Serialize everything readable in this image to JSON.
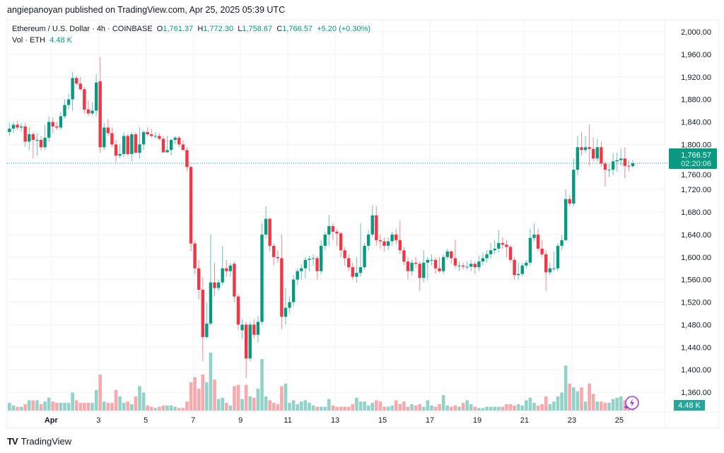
{
  "header": {
    "published": "angiepanoyan published on TradingView.com, Apr 25, 2025 05:39 UTC"
  },
  "legend": {
    "symbol": "Ethereum / U.S. Dollar · 4h · COINBASE",
    "o_label": "O",
    "o": "1,761.37",
    "h_label": "H",
    "h": "1,772.30",
    "l_label": "L",
    "l": "1,758.67",
    "c_label": "C",
    "c": "1,766.57",
    "change": "+5.20 (+0.30%)",
    "vol_label": "Vol · ETH",
    "vol": "4.48 K"
  },
  "price_tag": {
    "price": "1,766.57",
    "countdown": "02:20:06"
  },
  "volume_tag": "4.48 K",
  "footer": {
    "brand": "TradingView"
  },
  "colors": {
    "up": "#089981",
    "down": "#F23645",
    "up_vol": "#92d2c7",
    "down_vol": "#f7a9ad",
    "grid": "#f0f3fa"
  },
  "chart_data": {
    "type": "candlestick",
    "title": "Ethereum / U.S. Dollar · 4h · COINBASE",
    "ylim": [
      1340,
      2020
    ],
    "y_ticks": [
      "2,000.00",
      "1,960.00",
      "1,920.00",
      "1,880.00",
      "1,840.00",
      "1,800.00",
      "1,760.00",
      "1,720.00",
      "1,680.00",
      "1,640.00",
      "1,600.00",
      "1,560.00",
      "1,520.00",
      "1,480.00",
      "1,440.00",
      "1,400.00",
      "1,360.00"
    ],
    "y_tick_values": [
      2000,
      1960,
      1920,
      1880,
      1840,
      1800,
      1760,
      1720,
      1680,
      1640,
      1600,
      1560,
      1520,
      1480,
      1440,
      1400,
      1360
    ],
    "x_ticks": [
      "Apr",
      "3",
      "5",
      "7",
      "9",
      "11",
      "13",
      "15",
      "17",
      "19",
      "21",
      "23",
      "25"
    ],
    "x_tick_candle_index": [
      12,
      24,
      36,
      48,
      60,
      72,
      84,
      96,
      108,
      120,
      132,
      144,
      156
    ],
    "last_price": 1766.57,
    "candles_ohlcv_k": [
      [
        1822,
        1838,
        1815,
        1828,
        6
      ],
      [
        1828,
        1840,
        1820,
        1835,
        4
      ],
      [
        1835,
        1842,
        1826,
        1830,
        3
      ],
      [
        1830,
        1838,
        1822,
        1832,
        3
      ],
      [
        1832,
        1838,
        1796,
        1805,
        5
      ],
      [
        1805,
        1830,
        1790,
        1818,
        8
      ],
      [
        1818,
        1822,
        1775,
        1808,
        8
      ],
      [
        1808,
        1820,
        1780,
        1808,
        8
      ],
      [
        1808,
        1815,
        1790,
        1795,
        5
      ],
      [
        1795,
        1835,
        1790,
        1812,
        7
      ],
      [
        1812,
        1850,
        1805,
        1840,
        10
      ],
      [
        1840,
        1848,
        1820,
        1832,
        7
      ],
      [
        1832,
        1840,
        1826,
        1830,
        6
      ],
      [
        1830,
        1858,
        1826,
        1850,
        6
      ],
      [
        1850,
        1880,
        1846,
        1870,
        6
      ],
      [
        1870,
        1890,
        1862,
        1880,
        6
      ],
      [
        1880,
        1928,
        1860,
        1918,
        14
      ],
      [
        1918,
        1922,
        1905,
        1908,
        8
      ],
      [
        1908,
        1920,
        1895,
        1898,
        6
      ],
      [
        1898,
        1902,
        1855,
        1862,
        6
      ],
      [
        1862,
        1878,
        1850,
        1855,
        6
      ],
      [
        1855,
        1875,
        1852,
        1860,
        6
      ],
      [
        1860,
        1925,
        1850,
        1910,
        16
      ],
      [
        1912,
        1955,
        1785,
        1795,
        28
      ],
      [
        1795,
        1838,
        1790,
        1830,
        7
      ],
      [
        1830,
        1845,
        1815,
        1820,
        6
      ],
      [
        1820,
        1830,
        1795,
        1800,
        6
      ],
      [
        1800,
        1808,
        1768,
        1780,
        16
      ],
      [
        1780,
        1800,
        1775,
        1783,
        11
      ],
      [
        1783,
        1822,
        1778,
        1815,
        6
      ],
      [
        1815,
        1818,
        1780,
        1783,
        7
      ],
      [
        1783,
        1822,
        1770,
        1818,
        5
      ],
      [
        1818,
        1822,
        1785,
        1785,
        11
      ],
      [
        1785,
        1830,
        1775,
        1800,
        19
      ],
      [
        1800,
        1825,
        1790,
        1822,
        14
      ],
      [
        1822,
        1830,
        1815,
        1818,
        4
      ],
      [
        1818,
        1828,
        1812,
        1815,
        3
      ],
      [
        1815,
        1822,
        1810,
        1815,
        2
      ],
      [
        1815,
        1820,
        1808,
        1810,
        3
      ],
      [
        1810,
        1815,
        1785,
        1786,
        4
      ],
      [
        1786,
        1815,
        1785,
        1790,
        4
      ],
      [
        1790,
        1810,
        1780,
        1808,
        4
      ],
      [
        1808,
        1815,
        1800,
        1812,
        3
      ],
      [
        1812,
        1815,
        1795,
        1800,
        2
      ],
      [
        1800,
        1808,
        1790,
        1790,
        2
      ],
      [
        1790,
        1795,
        1752,
        1760,
        7
      ],
      [
        1760,
        1762,
        1610,
        1624,
        22
      ],
      [
        1624,
        1630,
        1570,
        1580,
        26
      ],
      [
        1580,
        1595,
        1525,
        1542,
        17
      ],
      [
        1542,
        1565,
        1415,
        1458,
        28
      ],
      [
        1458,
        1520,
        1455,
        1482,
        22
      ],
      [
        1482,
        1640,
        1478,
        1555,
        45
      ],
      [
        1555,
        1590,
        1530,
        1545,
        24
      ],
      [
        1545,
        1560,
        1540,
        1555,
        9
      ],
      [
        1555,
        1620,
        1550,
        1580,
        10
      ],
      [
        1580,
        1595,
        1565,
        1575,
        6
      ],
      [
        1575,
        1590,
        1565,
        1585,
        4
      ],
      [
        1588,
        1592,
        1520,
        1530,
        19
      ],
      [
        1530,
        1535,
        1470,
        1480,
        20
      ],
      [
        1470,
        1490,
        1455,
        1480,
        9
      ],
      [
        1480,
        1485,
        1385,
        1420,
        20
      ],
      [
        1420,
        1485,
        1415,
        1480,
        11
      ],
      [
        1480,
        1490,
        1455,
        1462,
        10
      ],
      [
        1462,
        1495,
        1448,
        1485,
        17
      ],
      [
        1485,
        1660,
        1480,
        1640,
        40
      ],
      [
        1640,
        1690,
        1632,
        1668,
        11
      ],
      [
        1668,
        1670,
        1610,
        1620,
        8
      ],
      [
        1620,
        1625,
        1585,
        1600,
        6
      ],
      [
        1600,
        1612,
        1590,
        1598,
        5
      ],
      [
        1598,
        1640,
        1472,
        1494,
        19
      ],
      [
        1494,
        1545,
        1480,
        1510,
        21
      ],
      [
        1510,
        1530,
        1500,
        1520,
        6
      ],
      [
        1520,
        1568,
        1512,
        1560,
        8
      ],
      [
        1560,
        1580,
        1550,
        1575,
        5
      ],
      [
        1575,
        1588,
        1560,
        1580,
        7
      ],
      [
        1580,
        1600,
        1562,
        1595,
        8
      ],
      [
        1595,
        1602,
        1575,
        1597,
        6
      ],
      [
        1597,
        1605,
        1585,
        1598,
        4
      ],
      [
        1598,
        1602,
        1560,
        1575,
        3
      ],
      [
        1575,
        1630,
        1570,
        1620,
        3
      ],
      [
        1620,
        1645,
        1612,
        1640,
        3
      ],
      [
        1640,
        1675,
        1620,
        1655,
        9
      ],
      [
        1655,
        1660,
        1630,
        1645,
        4
      ],
      [
        1645,
        1650,
        1620,
        1642,
        3
      ],
      [
        1642,
        1645,
        1600,
        1612,
        3
      ],
      [
        1612,
        1618,
        1585,
        1598,
        3
      ],
      [
        1598,
        1605,
        1575,
        1582,
        3
      ],
      [
        1582,
        1590,
        1560,
        1565,
        5
      ],
      [
        1565,
        1600,
        1555,
        1572,
        10
      ],
      [
        1572,
        1660,
        1565,
        1582,
        7
      ],
      [
        1582,
        1625,
        1578,
        1620,
        7
      ],
      [
        1620,
        1648,
        1612,
        1640,
        4
      ],
      [
        1640,
        1692,
        1635,
        1674,
        6
      ],
      [
        1674,
        1690,
        1620,
        1630,
        8
      ],
      [
        1630,
        1640,
        1615,
        1628,
        7
      ],
      [
        1628,
        1635,
        1610,
        1620,
        3
      ],
      [
        1620,
        1635,
        1612,
        1628,
        3
      ],
      [
        1628,
        1645,
        1620,
        1640,
        4
      ],
      [
        1640,
        1650,
        1622,
        1630,
        8
      ],
      [
        1630,
        1665,
        1605,
        1612,
        5
      ],
      [
        1612,
        1618,
        1585,
        1592,
        7
      ],
      [
        1592,
        1600,
        1560,
        1575,
        3
      ],
      [
        1575,
        1595,
        1568,
        1590,
        5
      ],
      [
        1590,
        1600,
        1580,
        1588,
        4
      ],
      [
        1588,
        1592,
        1540,
        1563,
        5
      ],
      [
        1563,
        1612,
        1555,
        1590,
        3
      ],
      [
        1590,
        1600,
        1560,
        1595,
        8
      ],
      [
        1595,
        1605,
        1585,
        1595,
        4
      ],
      [
        1595,
        1600,
        1570,
        1580,
        3
      ],
      [
        1580,
        1600,
        1572,
        1575,
        5
      ],
      [
        1575,
        1605,
        1570,
        1600,
        12
      ],
      [
        1600,
        1615,
        1595,
        1610,
        4
      ],
      [
        1610,
        1612,
        1588,
        1598,
        3
      ],
      [
        1598,
        1630,
        1580,
        1585,
        4
      ],
      [
        1585,
        1592,
        1575,
        1585,
        3
      ],
      [
        1585,
        1590,
        1578,
        1583,
        6
      ],
      [
        1583,
        1592,
        1578,
        1583,
        8
      ],
      [
        1583,
        1595,
        1575,
        1588,
        5
      ],
      [
        1588,
        1592,
        1570,
        1582,
        3
      ],
      [
        1582,
        1602,
        1575,
        1592,
        2
      ],
      [
        1592,
        1608,
        1585,
        1598,
        2
      ],
      [
        1598,
        1612,
        1590,
        1605,
        3
      ],
      [
        1605,
        1625,
        1598,
        1612,
        3
      ],
      [
        1612,
        1630,
        1605,
        1615,
        3
      ],
      [
        1615,
        1648,
        1608,
        1625,
        3
      ],
      [
        1625,
        1635,
        1615,
        1622,
        3
      ],
      [
        1622,
        1630,
        1600,
        1618,
        5
      ],
      [
        1618,
        1622,
        1590,
        1595,
        5
      ],
      [
        1595,
        1600,
        1560,
        1568,
        4
      ],
      [
        1568,
        1590,
        1560,
        1570,
        5
      ],
      [
        1570,
        1590,
        1565,
        1585,
        4
      ],
      [
        1585,
        1595,
        1580,
        1590,
        8
      ],
      [
        1590,
        1650,
        1585,
        1634,
        10
      ],
      [
        1634,
        1660,
        1628,
        1640,
        6
      ],
      [
        1640,
        1650,
        1610,
        1615,
        4
      ],
      [
        1615,
        1630,
        1600,
        1605,
        5
      ],
      [
        1605,
        1612,
        1540,
        1573,
        11
      ],
      [
        1573,
        1590,
        1568,
        1580,
        5
      ],
      [
        1580,
        1610,
        1575,
        1580,
        7
      ],
      [
        1580,
        1625,
        1575,
        1620,
        11
      ],
      [
        1620,
        1640,
        1612,
        1630,
        14
      ],
      [
        1630,
        1720,
        1628,
        1703,
        35
      ],
      [
        1703,
        1710,
        1690,
        1695,
        21
      ],
      [
        1695,
        1775,
        1690,
        1755,
        18
      ],
      [
        1755,
        1815,
        1745,
        1795,
        15
      ],
      [
        1795,
        1822,
        1780,
        1790,
        18
      ],
      [
        1790,
        1815,
        1785,
        1795,
        7
      ],
      [
        1795,
        1835,
        1762,
        1792,
        21
      ],
      [
        1792,
        1812,
        1770,
        1775,
        13
      ],
      [
        1775,
        1810,
        1770,
        1795,
        7
      ],
      [
        1795,
        1805,
        1760,
        1766,
        7
      ],
      [
        1766,
        1770,
        1725,
        1755,
        6
      ],
      [
        1755,
        1765,
        1742,
        1755,
        6
      ],
      [
        1755,
        1785,
        1745,
        1770,
        9
      ],
      [
        1770,
        1785,
        1752,
        1772,
        10
      ],
      [
        1772,
        1792,
        1762,
        1775,
        11
      ],
      [
        1775,
        1795,
        1740,
        1762,
        8
      ],
      [
        1762,
        1772,
        1752,
        1761.37,
        5
      ],
      [
        1761.37,
        1772.3,
        1758.67,
        1766.57,
        4.48
      ]
    ]
  }
}
